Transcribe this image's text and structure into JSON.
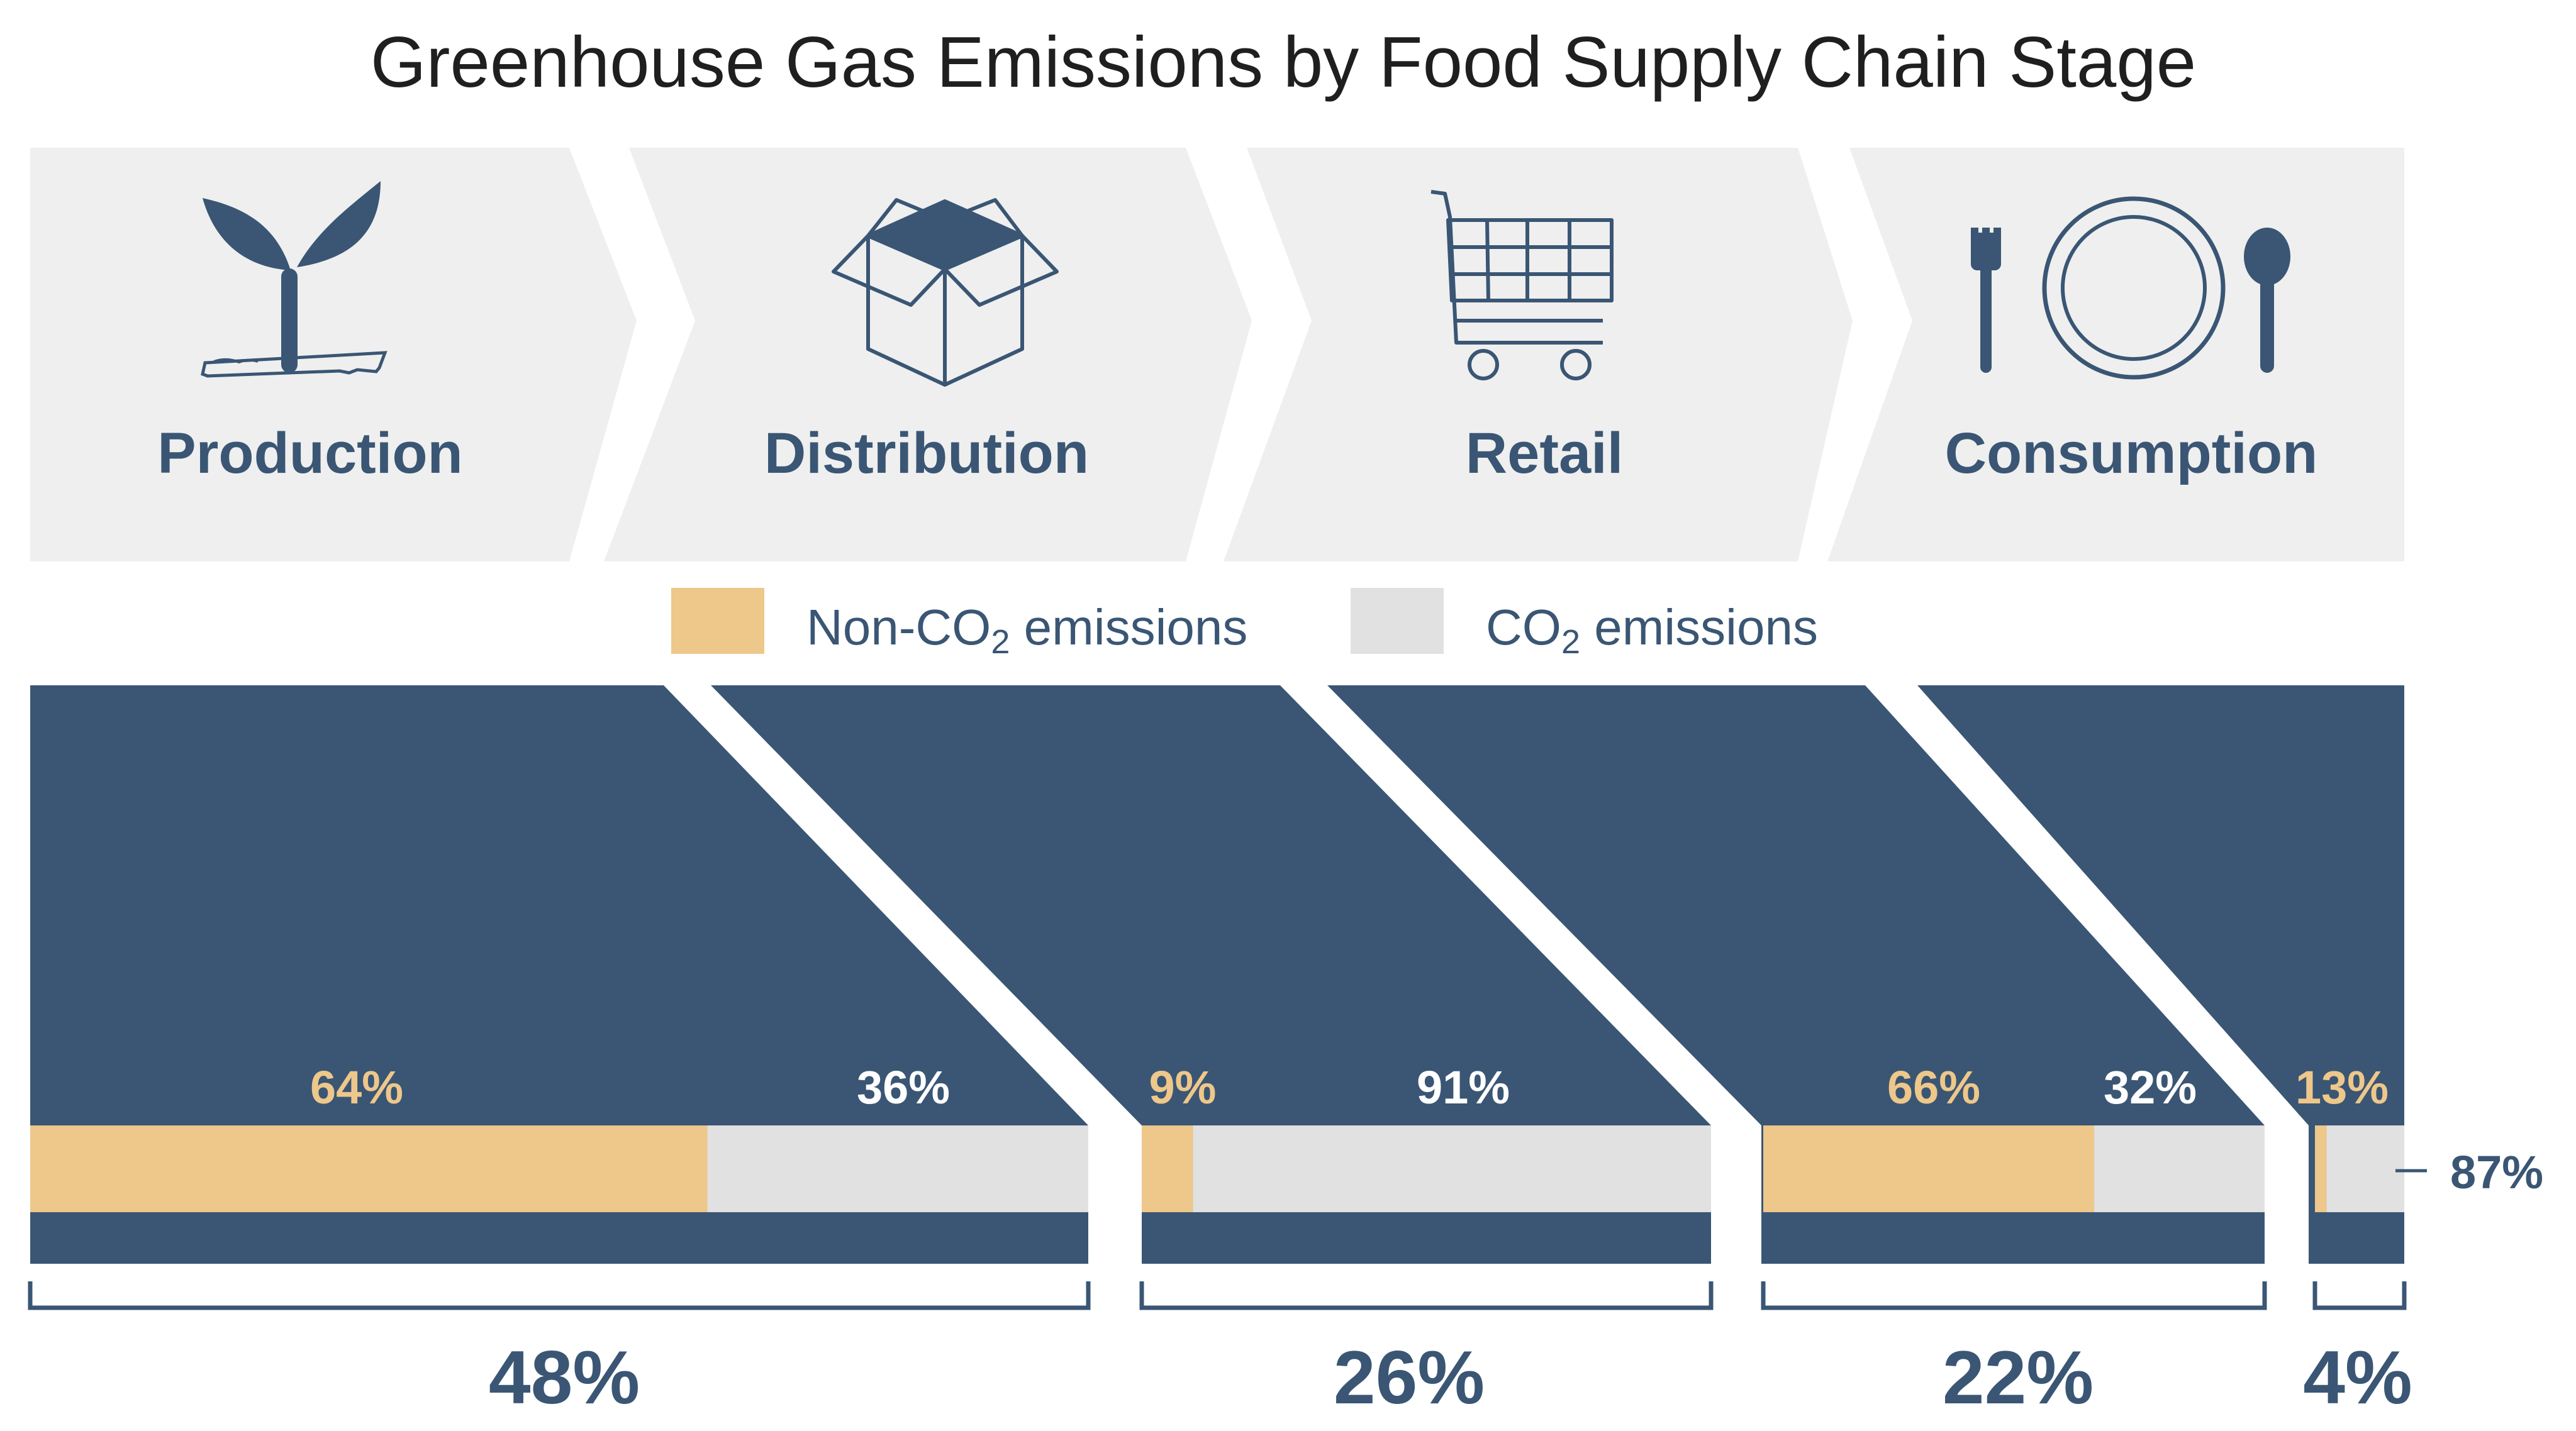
{
  "chart_data": {
    "type": "bar",
    "title": "Greenhouse Gas Emissions by Food Supply Chain Stage",
    "categories": [
      "Production",
      "Distribution",
      "Retail",
      "Consumption"
    ],
    "stage_icons": [
      "seedling-icon",
      "box-icon",
      "shopping-cart-icon",
      "plate-cutlery-icon"
    ],
    "share_of_total": [
      48,
      26,
      22,
      4
    ],
    "share_labels": [
      "48%",
      "26%",
      "22%",
      "4%"
    ],
    "series": [
      {
        "name": "Non-CO2 emissions",
        "values": [
          64,
          9,
          66,
          13
        ],
        "labels": [
          "64%",
          "9%",
          "66%",
          "13%"
        ],
        "color": "#eec78a"
      },
      {
        "name": "CO2 emissions",
        "values": [
          36,
          91,
          32,
          87
        ],
        "labels": [
          "36%",
          "91%",
          "32%",
          "87%"
        ],
        "color": "#e1e1e1"
      }
    ],
    "legend": {
      "position": "top-center",
      "entries": [
        {
          "prefix": "Non-CO",
          "subscript": "2",
          "suffix": " emissions",
          "color": "#eec78a"
        },
        {
          "prefix": "CO",
          "subscript": "2",
          "suffix": " emissions",
          "color": "#e1e1e1"
        }
      ]
    },
    "colors": {
      "navy": "#3a5674",
      "chevron": "#efefef",
      "title": "#1f1f1f"
    }
  }
}
